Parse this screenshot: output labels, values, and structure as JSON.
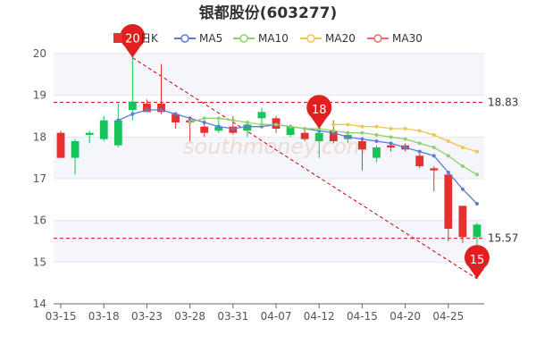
{
  "title": "银都股份(603277)",
  "watermark": "southmoney.com",
  "legend": {
    "kline_label": "日K",
    "ma": [
      {
        "label": "MA5",
        "color": "#5b7bd5"
      },
      {
        "label": "MA10",
        "color": "#8fd16a"
      },
      {
        "label": "MA20",
        "color": "#f6c350"
      },
      {
        "label": "MA30",
        "color": "#ef6a6a"
      }
    ]
  },
  "chart_data": {
    "type": "candlestick",
    "title": "银都股份(603277)",
    "ylim": [
      14,
      20
    ],
    "y_ticks": [
      14,
      15,
      16,
      17,
      18,
      19,
      20
    ],
    "x_tick_labels": [
      {
        "index": 0,
        "label": "03-15"
      },
      {
        "index": 3,
        "label": "03-18"
      },
      {
        "index": 6,
        "label": "03-23"
      },
      {
        "index": 9,
        "label": "03-28"
      },
      {
        "index": 12,
        "label": "03-31"
      },
      {
        "index": 15,
        "label": "04-07"
      },
      {
        "index": 18,
        "label": "04-12"
      },
      {
        "index": 21,
        "label": "04-15"
      },
      {
        "index": 24,
        "label": "04-20"
      },
      {
        "index": 27,
        "label": "04-25"
      }
    ],
    "candles": [
      {
        "o": 17.5,
        "c": 18.1,
        "h": 18.15,
        "l": 17.5
      },
      {
        "o": 17.9,
        "c": 17.5,
        "h": 17.95,
        "l": 17.1
      },
      {
        "o": 18.1,
        "c": 18.05,
        "h": 18.15,
        "l": 17.85
      },
      {
        "o": 18.4,
        "c": 17.95,
        "h": 18.5,
        "l": 17.9
      },
      {
        "o": 18.4,
        "c": 17.8,
        "h": 18.8,
        "l": 17.75
      },
      {
        "o": 18.85,
        "c": 18.65,
        "h": 19.9,
        "l": 18.4
      },
      {
        "o": 18.6,
        "c": 18.8,
        "h": 18.9,
        "l": 18.6
      },
      {
        "o": 18.6,
        "c": 18.8,
        "h": 19.75,
        "l": 18.55
      },
      {
        "o": 18.35,
        "c": 18.55,
        "h": 18.6,
        "l": 18.2
      },
      {
        "o": 18.35,
        "c": 18.4,
        "h": 18.5,
        "l": 17.9
      },
      {
        "o": 18.1,
        "c": 18.25,
        "h": 18.35,
        "l": 18.0
      },
      {
        "o": 18.25,
        "c": 18.15,
        "h": 18.4,
        "l": 18.1
      },
      {
        "o": 18.1,
        "c": 18.25,
        "h": 18.5,
        "l": 18.05
      },
      {
        "o": 18.3,
        "c": 18.15,
        "h": 18.35,
        "l": 18.0
      },
      {
        "o": 18.6,
        "c": 18.45,
        "h": 18.7,
        "l": 18.3
      },
      {
        "o": 18.2,
        "c": 18.45,
        "h": 18.5,
        "l": 18.1
      },
      {
        "o": 18.25,
        "c": 18.05,
        "h": 18.3,
        "l": 18.0
      },
      {
        "o": 17.95,
        "c": 18.1,
        "h": 18.2,
        "l": 17.9
      },
      {
        "o": 18.1,
        "c": 17.9,
        "h": 18.2,
        "l": 17.5
      },
      {
        "o": 17.9,
        "c": 18.15,
        "h": 18.4,
        "l": 17.85
      },
      {
        "o": 18.05,
        "c": 17.95,
        "h": 18.1,
        "l": 17.85
      },
      {
        "o": 17.7,
        "c": 17.9,
        "h": 18.0,
        "l": 17.2
      },
      {
        "o": 17.75,
        "c": 17.5,
        "h": 17.8,
        "l": 17.4
      },
      {
        "o": 17.75,
        "c": 17.8,
        "h": 17.85,
        "l": 17.65
      },
      {
        "o": 17.7,
        "c": 17.8,
        "h": 17.85,
        "l": 17.65
      },
      {
        "o": 17.3,
        "c": 17.55,
        "h": 17.6,
        "l": 17.25
      },
      {
        "o": 17.2,
        "c": 17.25,
        "h": 17.3,
        "l": 16.7
      },
      {
        "o": 15.8,
        "c": 17.1,
        "h": 17.1,
        "l": 15.5
      },
      {
        "o": 15.6,
        "c": 16.35,
        "h": 16.35,
        "l": 15.45
      },
      {
        "o": 15.9,
        "c": 15.6,
        "h": 15.95,
        "l": 14.6
      }
    ],
    "ma": {
      "MA5": [
        null,
        null,
        null,
        null,
        18.4,
        18.55,
        18.65,
        18.65,
        18.55,
        18.45,
        18.35,
        18.25,
        18.2,
        18.25,
        18.25,
        18.3,
        18.25,
        18.2,
        18.15,
        18.1,
        18.0,
        17.95,
        17.9,
        17.85,
        17.75,
        17.65,
        17.55,
        17.15,
        16.75,
        16.4
      ],
      "MA10": [
        null,
        null,
        null,
        null,
        null,
        null,
        null,
        null,
        null,
        18.35,
        18.45,
        18.45,
        18.4,
        18.35,
        18.3,
        18.3,
        18.25,
        18.2,
        18.2,
        18.15,
        18.1,
        18.1,
        18.05,
        18.0,
        17.95,
        17.85,
        17.75,
        17.55,
        17.3,
        17.1
      ],
      "MA20": [
        null,
        null,
        null,
        null,
        null,
        null,
        null,
        null,
        null,
        null,
        null,
        null,
        null,
        null,
        null,
        null,
        null,
        null,
        null,
        18.3,
        18.3,
        18.25,
        18.25,
        18.2,
        18.2,
        18.15,
        18.05,
        17.9,
        17.75,
        17.65
      ]
    },
    "reference_lines": [
      {
        "value": 18.83,
        "label": "18.83"
      },
      {
        "value": 15.57,
        "label": "15.57"
      }
    ],
    "markers": [
      {
        "index": 5,
        "value": 19.9,
        "label": "20"
      },
      {
        "index": 18,
        "value": 18.2,
        "label": "18"
      },
      {
        "index": 29,
        "value": 14.6,
        "label": "15"
      }
    ],
    "trend_line": {
      "from_index": 5,
      "from_value": 19.9,
      "to_index": 29,
      "to_value": 14.6
    },
    "colors": {
      "up": "#e53030",
      "down": "#16c45a",
      "reference": "#cc0000",
      "marker": "#e02020"
    }
  }
}
